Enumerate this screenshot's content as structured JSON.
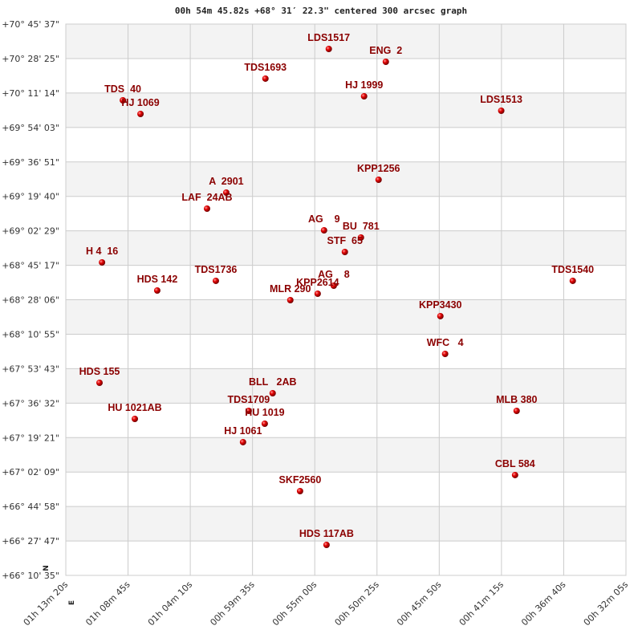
{
  "chart_data": {
    "type": "scatter",
    "title": "00h 54m 45.82s +68° 31′ 22.3\" centered 300 arcsec graph",
    "x_axis": {
      "quantity": "right ascension",
      "reversed": true,
      "ticks": [
        "01h 13m 20s",
        "01h 08m 45s",
        "01h 04m 10s",
        "00h 59m 35s",
        "00h 55m 00s",
        "00h 50m 25s",
        "00h 45m 50s",
        "00h 41m 15s",
        "00h 36m 40s",
        "00h 32m 05s"
      ],
      "range": [
        "01h 13m 20s",
        "00h 32m 05s"
      ]
    },
    "y_axis": {
      "quantity": "declination",
      "ticks": [
        "+70° 45' 37\"",
        "+70° 28' 25\"",
        "+70° 11' 14\"",
        "+69° 54' 03\"",
        "+69° 36' 51\"",
        "+69° 19' 40\"",
        "+69° 02' 29\"",
        "+68° 45' 17\"",
        "+68° 28' 06\"",
        "+68° 10' 55\"",
        "+67° 53' 43\"",
        "+67° 36' 32\"",
        "+67° 19' 21\"",
        "+67° 02' 09\"",
        "+66° 44' 58\"",
        "+66° 27' 47\"",
        "+66° 10' 35\""
      ],
      "range": [
        "+66° 10' 35\"",
        "+70° 45' 37\""
      ]
    },
    "grid": true,
    "compass": {
      "north": "N",
      "east": "E"
    },
    "colors": {
      "marker": "#dd0000",
      "label": "#8b0000",
      "band": "#f3f3f3",
      "grid": "#cccccc"
    },
    "points": [
      {
        "name": "LDS1517",
        "ra": "00h 53m 58s",
        "dec": "+70° 33' 12\""
      },
      {
        "name": "ENG  2",
        "ra": "00h 49m 46s",
        "dec": "+70° 26' 48\""
      },
      {
        "name": "TDS1693",
        "ra": "00h 58m 38s",
        "dec": "+70° 18' 24\""
      },
      {
        "name": "HJ 1999",
        "ra": "00h 51m 22s",
        "dec": "+70° 09' 35\""
      },
      {
        "name": "LDS1513",
        "ra": "00h 41m 16s",
        "dec": "+70° 02' 23\""
      },
      {
        "name": "TDS  40",
        "ra": "01h 09m 08s",
        "dec": "+70° 07' 35\""
      },
      {
        "name": "HJ 1069",
        "ra": "01h 07m 50s",
        "dec": "+70° 00' 47\""
      },
      {
        "name": "KPP1256",
        "ra": "00h 50m 18s",
        "dec": "+69° 27' 57\""
      },
      {
        "name": "A  2901",
        "ra": "01h 01m 31s",
        "dec": "+69° 21' 33\""
      },
      {
        "name": "LAF  24AB",
        "ra": "01h 02m 56s",
        "dec": "+69° 13' 32\""
      },
      {
        "name": "AG    9",
        "ra": "00h 54m 19s",
        "dec": "+69° 02' 44\""
      },
      {
        "name": "BU  781",
        "ra": "00h 51m 36s",
        "dec": "+68° 59' 08\""
      },
      {
        "name": "STF  65",
        "ra": "00h 52m 47s",
        "dec": "+68° 51' 55\""
      },
      {
        "name": "H 4  16",
        "ra": "01h 10m 40s",
        "dec": "+68° 46' 43\""
      },
      {
        "name": "TDS1736",
        "ra": "01h 02m 17s",
        "dec": "+68° 37' 31\""
      },
      {
        "name": "TDS1540",
        "ra": "00h 36m 00s",
        "dec": "+68° 37' 31\""
      },
      {
        "name": "HDS 142",
        "ra": "01h 06m 36s",
        "dec": "+68° 32' 42\""
      },
      {
        "name": "AG    8",
        "ra": "00h 53m 36s",
        "dec": "+68° 35' 06\""
      },
      {
        "name": "KPP2614",
        "ra": "00h 54m 47s",
        "dec": "+68° 31' 06\""
      },
      {
        "name": "MLR 290",
        "ra": "00h 56m 48s",
        "dec": "+68° 27' 54\""
      },
      {
        "name": "KPP3430",
        "ra": "00h 45m 45s",
        "dec": "+68° 19' 54\""
      },
      {
        "name": "WFC   4",
        "ra": "00h 45m 24s",
        "dec": "+68° 01' 05\""
      },
      {
        "name": "HDS 155",
        "ra": "01h 10m 51s",
        "dec": "+67° 46' 40\""
      },
      {
        "name": "BLL   2AB",
        "ra": "00h 58m 06s",
        "dec": "+67° 41' 28\""
      },
      {
        "name": "TDS1709",
        "ra": "00h 59m 52s",
        "dec": "+67° 32' 39\""
      },
      {
        "name": "HU 1021AB",
        "ra": "01h 08m 15s",
        "dec": "+67° 28' 39\""
      },
      {
        "name": "MLB 380",
        "ra": "00h 40m 08s",
        "dec": "+67° 32' 39\""
      },
      {
        "name": "HU 1019",
        "ra": "00h 58m 41s",
        "dec": "+67° 26' 15\""
      },
      {
        "name": "HJ 1061",
        "ra": "01h 00m 17s",
        "dec": "+67° 17' 03\""
      },
      {
        "name": "CBL 584",
        "ra": "00h 40m 15s",
        "dec": "+67° 00' 38\""
      },
      {
        "name": "SKF2560",
        "ra": "00h 56m 05s",
        "dec": "+66° 52' 37\""
      },
      {
        "name": "HDS 117AB",
        "ra": "00h 54m 08s",
        "dec": "+66° 25' 48\""
      }
    ]
  }
}
